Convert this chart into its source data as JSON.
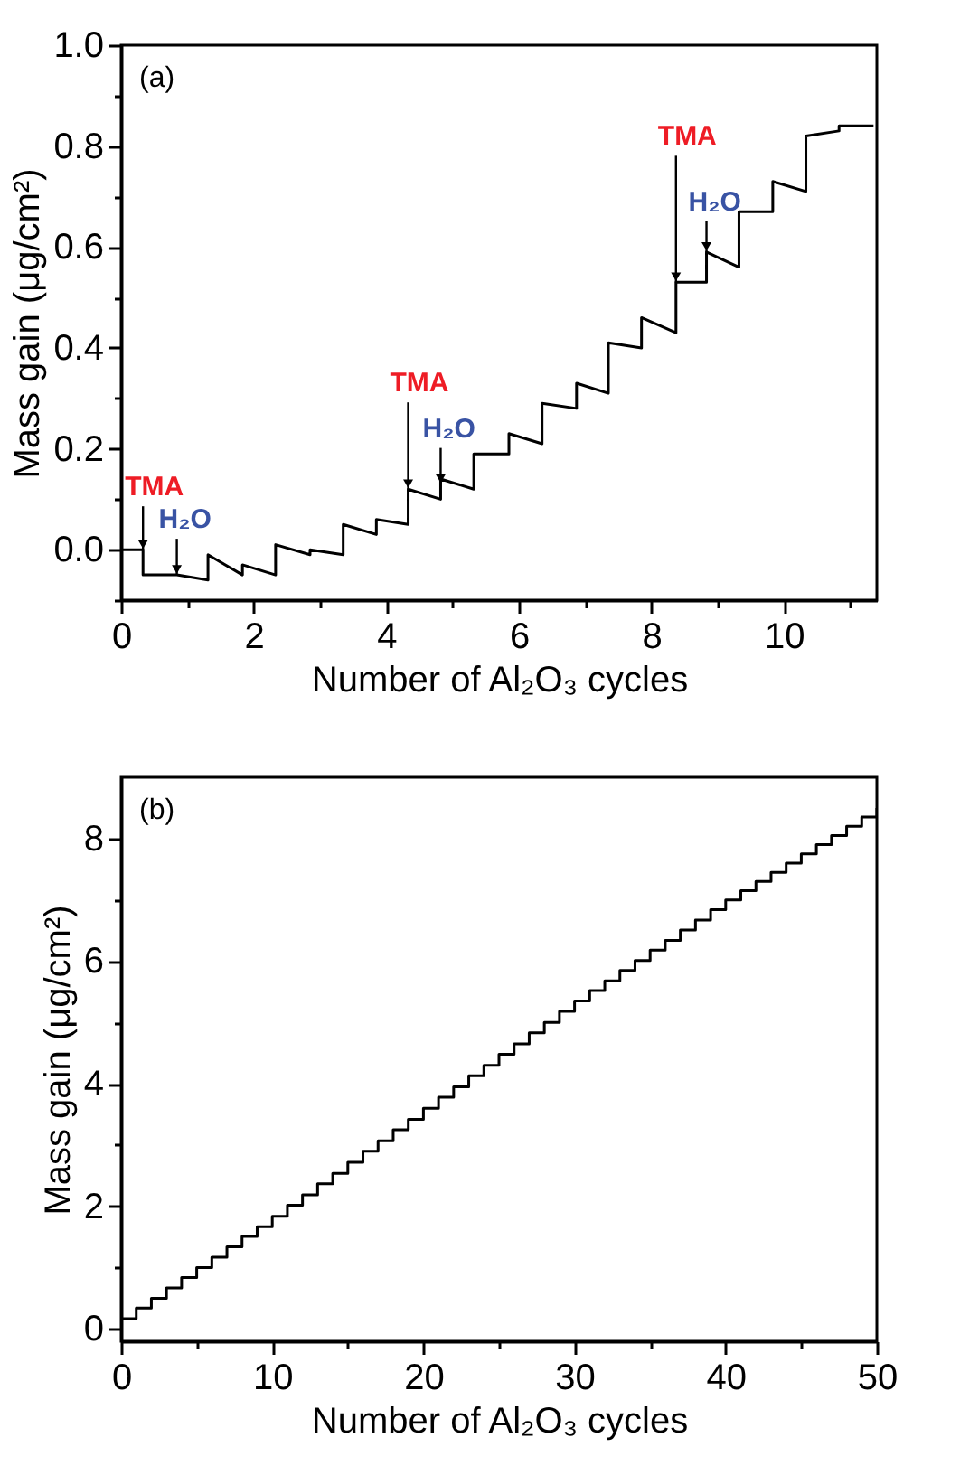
{
  "chart_data": [
    {
      "type": "line",
      "xlabel": "Number of Al₂O₃ cycles",
      "ylabel": "Mass gain (μg/cm²)",
      "xlim": [
        0,
        11.4
      ],
      "ylim": [
        -0.1,
        1.0
      ],
      "xticks": [
        0,
        {
          "value": 1,
          "label": null
        },
        2,
        {
          "value": 3,
          "label": null
        },
        4,
        {
          "value": 5,
          "label": null
        },
        6,
        {
          "value": 7,
          "label": null
        },
        8,
        {
          "value": 9,
          "label": null
        },
        10,
        {
          "value": 11,
          "label": null
        }
      ],
      "yticks": [
        {
          "value": -0.1,
          "label": null
        },
        {
          "value": 0,
          "label": "0.0"
        },
        {
          "value": 0.1,
          "label": null
        },
        0.2,
        {
          "value": 0.3,
          "label": null
        },
        0.4,
        {
          "value": 0.5,
          "label": null
        },
        0.6,
        {
          "value": 0.7,
          "label": null
        },
        0.8,
        {
          "value": 0.9,
          "label": null
        },
        {
          "value": 1.0,
          "label": "1.0"
        }
      ],
      "grid": false,
      "annotations": [
        "(a)",
        {
          "text": "TMA",
          "x": 0.33,
          "y": 0.0
        },
        {
          "text": "H₂O",
          "x": 0.84,
          "y": -0.05
        },
        {
          "text": "TMA",
          "x": 4.33,
          "y": 0.12
        },
        {
          "text": "H₂O",
          "x": 4.82,
          "y": 0.13
        },
        {
          "text": "TMA",
          "x": 8.37,
          "y": 0.53
        },
        {
          "text": "H₂O",
          "x": 8.83,
          "y": 0.59
        }
      ],
      "x": [
        0,
        0.33,
        0.33,
        0.5,
        0.84,
        1.31,
        1.31,
        1.83,
        1.83,
        2.33,
        2.33,
        2.85,
        2.85,
        3.35,
        3.35,
        3.85,
        3.85,
        4.33,
        4.33,
        4.82,
        4.82,
        5.32,
        5.32,
        5.85,
        5.85,
        6.35,
        6.35,
        6.87,
        6.87,
        7.35,
        7.35,
        7.85,
        7.85,
        8.37,
        8.37,
        8.83,
        8.83,
        9.32,
        9.32,
        9.83,
        9.83,
        10.33,
        10.33,
        10.83,
        10.83,
        11.35
      ],
      "series": [
        {
          "color": "#000000",
          "values": [
            0,
            0,
            -0.05,
            -0.05,
            -0.05,
            -0.06,
            -0.01,
            -0.05,
            -0.03,
            -0.05,
            0.01,
            -0.01,
            0.0,
            -0.01,
            0.05,
            0.03,
            0.06,
            0.05,
            0.12,
            0.1,
            0.14,
            0.12,
            0.19,
            0.19,
            0.23,
            0.21,
            0.29,
            0.28,
            0.33,
            0.31,
            0.41,
            0.4,
            0.46,
            0.43,
            0.53,
            0.53,
            0.59,
            0.56,
            0.67,
            0.67,
            0.73,
            0.71,
            0.82,
            0.83,
            0.84,
            0.84
          ]
        }
      ]
    },
    {
      "type": "step",
      "xlabel": "Number of Al₂O₃ cycles",
      "ylabel": "Mass gain (μg/cm²)",
      "xlim": [
        0,
        50
      ],
      "ylim": [
        -0.2,
        9
      ],
      "xticks": [
        0,
        {
          "value": 5,
          "label": null
        },
        10,
        {
          "value": 15,
          "label": null
        },
        20,
        {
          "value": 25,
          "label": null
        },
        30,
        {
          "value": 35,
          "label": null
        },
        40,
        {
          "value": 45,
          "label": null
        },
        50
      ],
      "yticks": [
        0,
        {
          "value": 1,
          "label": null
        },
        2,
        {
          "value": 3,
          "label": null
        },
        4,
        {
          "value": 5,
          "label": null
        },
        6,
        {
          "value": 7,
          "label": null
        },
        8
      ],
      "grid": false,
      "annotations": [
        "(b)"
      ],
      "x": [
        0,
        1,
        2,
        3,
        4,
        5,
        6,
        7,
        8,
        9,
        10,
        11,
        12,
        13,
        14,
        15,
        16,
        17,
        18,
        19,
        20,
        21,
        22,
        23,
        24,
        25,
        26,
        27,
        28,
        29,
        30,
        31,
        32,
        33,
        34,
        35,
        36,
        37,
        38,
        39,
        40,
        41,
        42,
        43,
        44,
        45,
        46,
        47,
        48,
        49,
        50
      ],
      "series": [
        {
          "color": "#000000",
          "values": [
            0.17,
            0.34,
            0.5,
            0.67,
            0.84,
            1.0,
            1.17,
            1.34,
            1.51,
            1.67,
            1.84,
            2.02,
            2.19,
            2.37,
            2.54,
            2.72,
            2.9,
            3.07,
            3.25,
            3.42,
            3.6,
            3.78,
            3.95,
            4.13,
            4.3,
            4.48,
            4.65,
            4.83,
            5.0,
            5.18,
            5.35,
            5.52,
            5.68,
            5.85,
            6.01,
            6.18,
            6.34,
            6.51,
            6.67,
            6.84,
            7.0,
            7.15,
            7.3,
            7.45,
            7.6,
            7.75,
            7.9,
            8.05,
            8.2,
            8.35,
            8.5
          ]
        }
      ]
    }
  ]
}
